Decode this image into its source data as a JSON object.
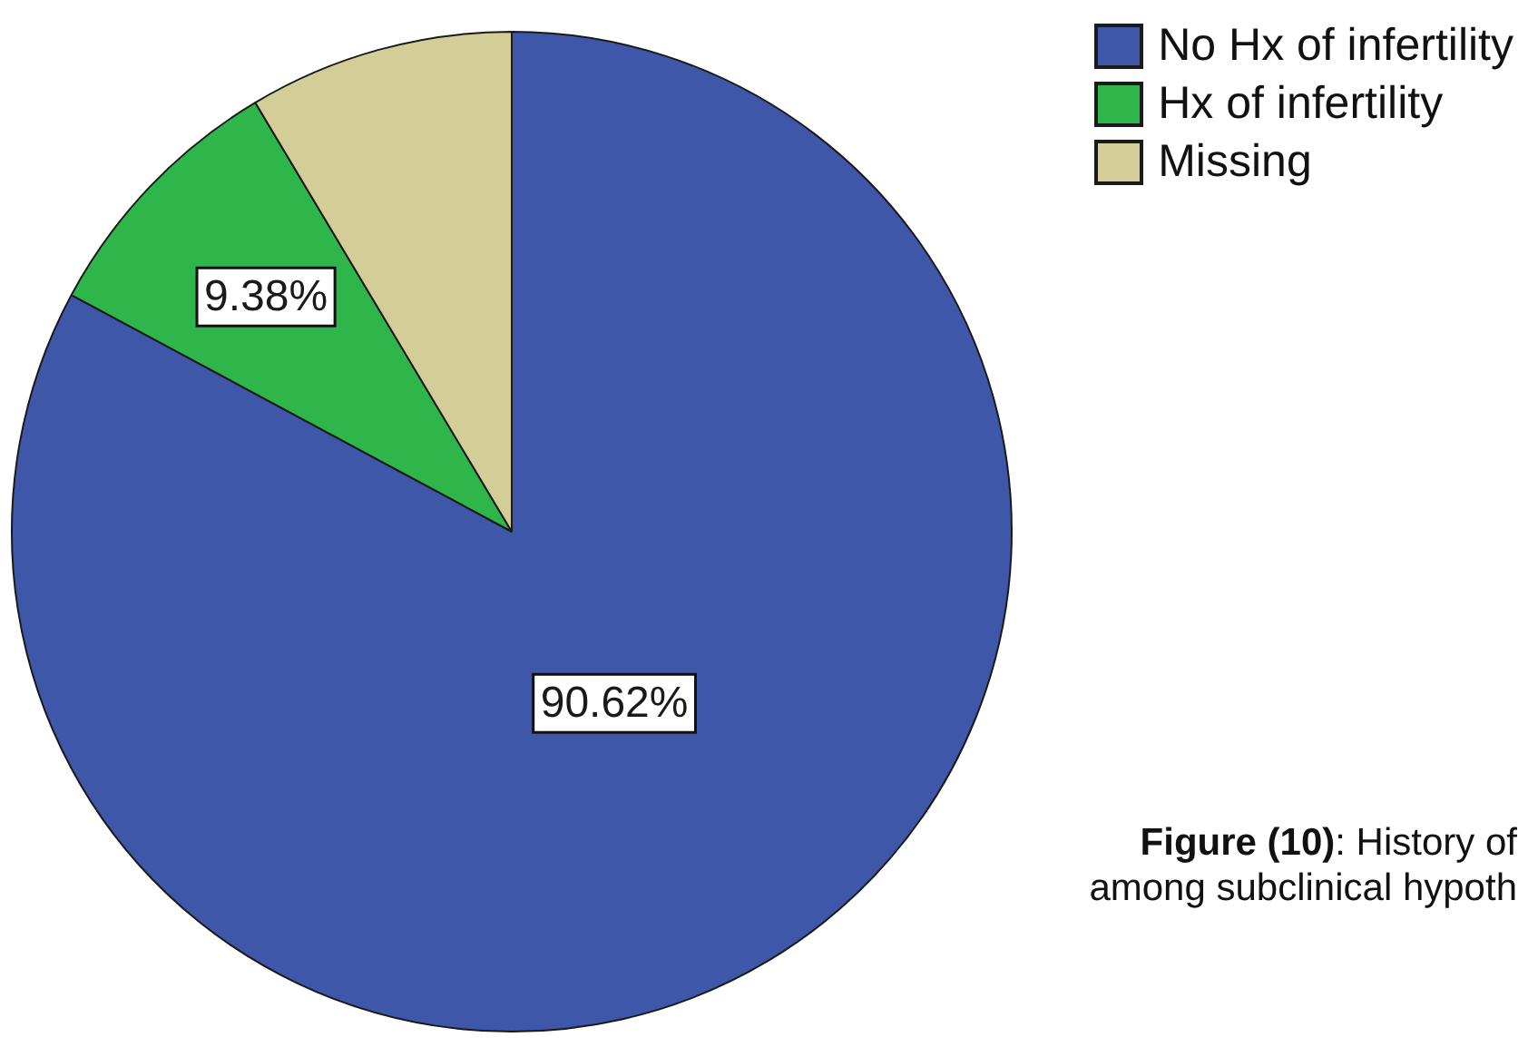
{
  "chart_data": {
    "type": "pie",
    "categories": [
      "No Hx of infertility",
      "Hx of infertility",
      "Missing"
    ],
    "values": [
      90.62,
      9.38,
      9.38
    ],
    "colors": [
      "#3e57a8",
      "#2fb64b",
      "#d3cd98"
    ],
    "value_labels": [
      "90.62%",
      "9.38%",
      null
    ],
    "legend": "top right",
    "annotations": [
      "Figure (10): History of\namong subclinical hypoth"
    ]
  }
}
